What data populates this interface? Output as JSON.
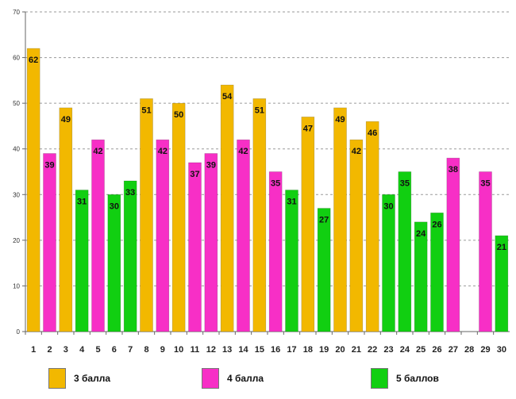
{
  "chart_data": {
    "type": "bar",
    "title": "",
    "xlabel": "",
    "ylabel": "",
    "ylim": [
      0,
      70
    ],
    "yticks": [
      0,
      10,
      20,
      30,
      40,
      50,
      60,
      70
    ],
    "grid": true,
    "categories": [
      "1",
      "2",
      "3",
      "4",
      "5",
      "6",
      "7",
      "8",
      "9",
      "10",
      "11",
      "12",
      "13",
      "14",
      "15",
      "16",
      "17",
      "18",
      "19",
      "20",
      "21",
      "22",
      "23",
      "24",
      "25",
      "26",
      "27",
      "28",
      "29",
      "30"
    ],
    "values": [
      62,
      39,
      49,
      31,
      42,
      30,
      33,
      51,
      42,
      50,
      37,
      39,
      54,
      42,
      51,
      35,
      31,
      47,
      27,
      49,
      42,
      46,
      30,
      35,
      24,
      26,
      38,
      null,
      35,
      21
    ],
    "series_index": [
      0,
      1,
      0,
      2,
      1,
      2,
      2,
      0,
      1,
      0,
      1,
      1,
      0,
      1,
      0,
      1,
      2,
      0,
      2,
      0,
      0,
      0,
      2,
      2,
      2,
      2,
      1,
      null,
      1,
      2
    ],
    "legend_position": "bottom",
    "series": [
      {
        "name": "3 балла",
        "color": "#f2b800"
      },
      {
        "name": "4 балла",
        "color": "#f72fc6"
      },
      {
        "name": "5 баллов",
        "color": "#11cf11"
      }
    ]
  }
}
